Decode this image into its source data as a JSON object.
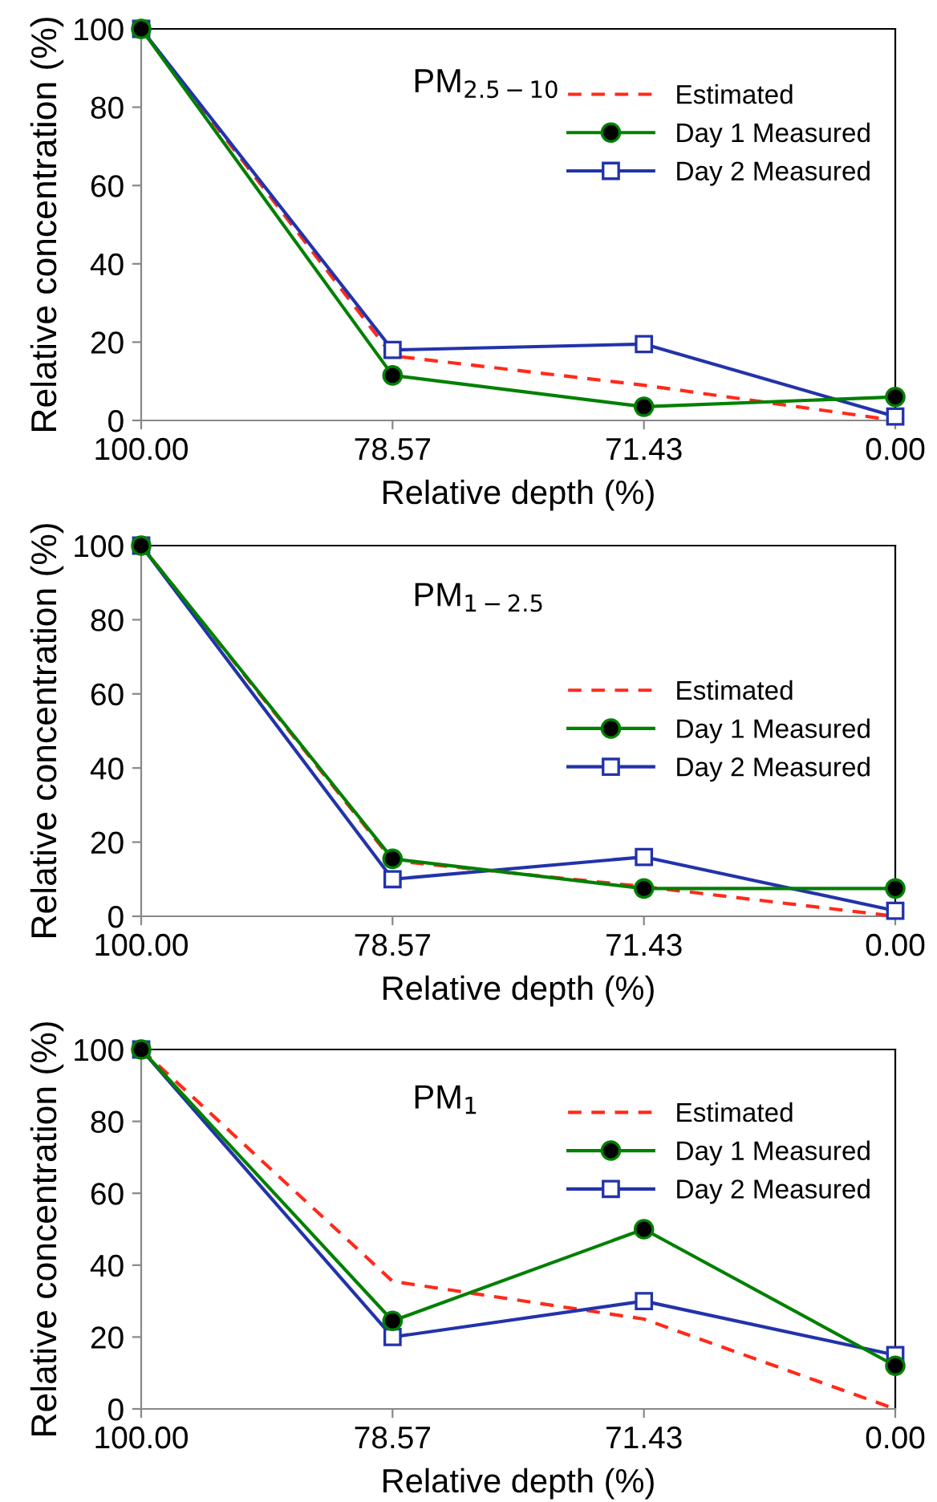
{
  "chart_data": [
    {
      "type": "line",
      "title": "PM$_{2.5−10}$",
      "xlabel": "Relative depth (%)",
      "ylabel": "Relative concentration (%)",
      "categories": [
        "100.00",
        "78.57",
        "71.43",
        "0.00"
      ],
      "ylim": [
        0,
        100
      ],
      "yticks": [
        0,
        20,
        40,
        60,
        80,
        100
      ],
      "legend": "top right",
      "grid": false,
      "series": [
        {
          "name": "Estimated",
          "color": "#ff2a1a",
          "line_style": "dashed",
          "marker": "none",
          "values": [
            100,
            16.5,
            9,
            0
          ]
        },
        {
          "name": "Day 1 Measured",
          "color": "#008000",
          "line_style": "solid",
          "marker": "circle",
          "values": [
            100,
            11.5,
            3.5,
            6
          ]
        },
        {
          "name": "Day 2 Measured",
          "color": "#2233aa",
          "line_style": "solid",
          "marker": "square",
          "values": [
            100,
            18,
            19.5,
            1
          ]
        }
      ]
    },
    {
      "type": "line",
      "title": "PM$_{1−2.5}$",
      "xlabel": "Relative depth (%)",
      "ylabel": "Relative concentration (%)",
      "categories": [
        "100.00",
        "78.57",
        "71.43",
        "0.00"
      ],
      "ylim": [
        0,
        100
      ],
      "yticks": [
        0,
        20,
        40,
        60,
        80,
        100
      ],
      "legend": "right",
      "grid": false,
      "series": [
        {
          "name": "Estimated",
          "color": "#ff2a1a",
          "line_style": "dashed",
          "marker": "none",
          "values": [
            100,
            15,
            8,
            0
          ]
        },
        {
          "name": "Day 1 Measured",
          "color": "#008000",
          "line_style": "solid",
          "marker": "circle",
          "values": [
            100,
            15.5,
            7.5,
            7.5
          ]
        },
        {
          "name": "Day 2 Measured",
          "color": "#2233aa",
          "line_style": "solid",
          "marker": "square",
          "values": [
            100,
            10,
            16,
            1.5
          ]
        }
      ]
    },
    {
      "type": "line",
      "title": "PM$_{1}$",
      "xlabel": "Relative depth (%)",
      "ylabel": "Relative concentration (%)",
      "categories": [
        "100.00",
        "78.57",
        "71.43",
        "0.00"
      ],
      "ylim": [
        0,
        100
      ],
      "yticks": [
        0,
        20,
        40,
        60,
        80,
        100
      ],
      "legend": "top right",
      "grid": false,
      "series": [
        {
          "name": "Estimated",
          "color": "#ff2a1a",
          "line_style": "dashed",
          "marker": "none",
          "values": [
            100,
            35.5,
            25,
            0
          ]
        },
        {
          "name": "Day 1 Measured",
          "color": "#008000",
          "line_style": "solid",
          "marker": "circle",
          "values": [
            100,
            24.5,
            50,
            12
          ]
        },
        {
          "name": "Day 2 Measured",
          "color": "#2233aa",
          "line_style": "solid",
          "marker": "square",
          "values": [
            100,
            20,
            30,
            15
          ]
        }
      ]
    }
  ]
}
